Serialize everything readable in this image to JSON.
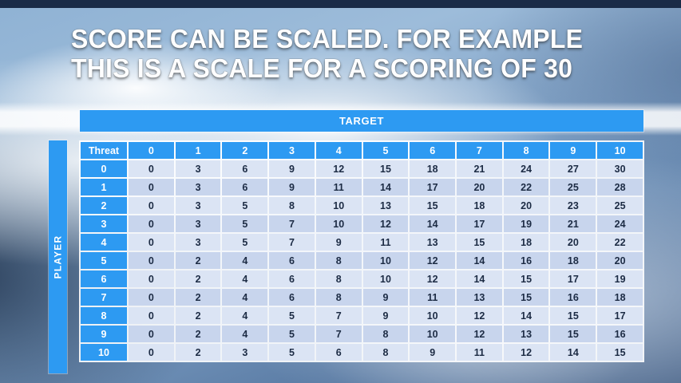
{
  "title": {
    "line1": "SCORE CAN BE SCALED. FOR EXAMPLE",
    "line2": "THIS IS A SCALE FOR A SCORING OF 30"
  },
  "table": {
    "target_label": "TARGET",
    "player_label": "PLAYER",
    "threat_label": "Threat",
    "col_headers": [
      "0",
      "1",
      "2",
      "3",
      "4",
      "5",
      "6",
      "7",
      "8",
      "9",
      "10"
    ],
    "rows": [
      {
        "header": "0",
        "values": [
          0,
          3,
          6,
          9,
          12,
          15,
          18,
          21,
          24,
          27,
          30
        ]
      },
      {
        "header": "1",
        "values": [
          0,
          3,
          6,
          9,
          11,
          14,
          17,
          20,
          22,
          25,
          28
        ]
      },
      {
        "header": "2",
        "values": [
          0,
          3,
          5,
          8,
          10,
          13,
          15,
          18,
          20,
          23,
          25
        ]
      },
      {
        "header": "3",
        "values": [
          0,
          3,
          5,
          7,
          10,
          12,
          14,
          17,
          19,
          21,
          24
        ]
      },
      {
        "header": "4",
        "values": [
          0,
          3,
          5,
          7,
          9,
          11,
          13,
          15,
          18,
          20,
          22
        ]
      },
      {
        "header": "5",
        "values": [
          0,
          2,
          4,
          6,
          8,
          10,
          12,
          14,
          16,
          18,
          20
        ]
      },
      {
        "header": "6",
        "values": [
          0,
          2,
          4,
          6,
          8,
          10,
          12,
          14,
          15,
          17,
          19
        ]
      },
      {
        "header": "7",
        "values": [
          0,
          2,
          4,
          6,
          8,
          9,
          11,
          13,
          15,
          16,
          18
        ]
      },
      {
        "header": "8",
        "values": [
          0,
          2,
          4,
          5,
          7,
          9,
          10,
          12,
          14,
          15,
          17
        ]
      },
      {
        "header": "9",
        "values": [
          0,
          2,
          4,
          5,
          7,
          8,
          10,
          12,
          13,
          15,
          16
        ]
      },
      {
        "header": "10",
        "values": [
          0,
          2,
          3,
          5,
          6,
          8,
          9,
          11,
          12,
          14,
          15
        ]
      }
    ]
  },
  "colors": {
    "accent_blue": "#2d9af2",
    "row_light": "#dbe4f4",
    "row_dark": "#c8d5ed",
    "top_strip": "#1a2b47",
    "cell_text": "#1c2b44"
  }
}
